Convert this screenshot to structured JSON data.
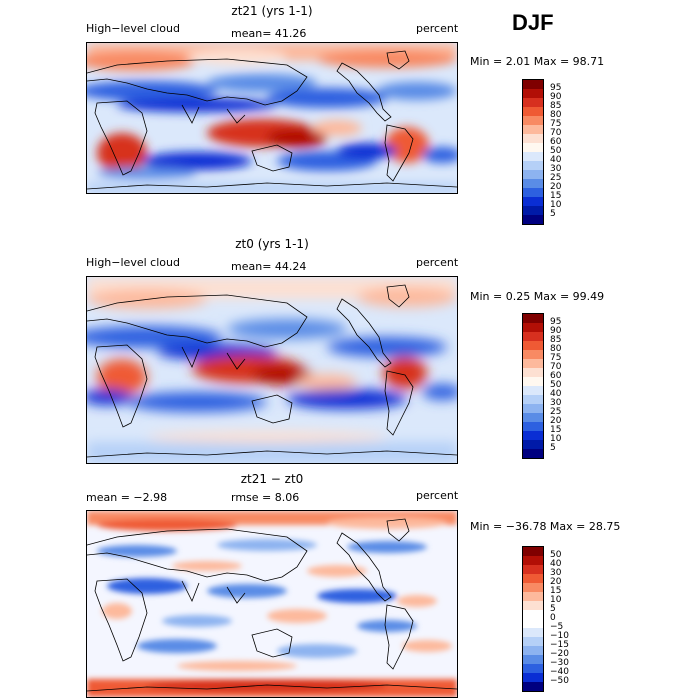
{
  "season": "DJF",
  "panels": [
    {
      "title": "zt21 (yrs 1-1)",
      "left_label": "High−level cloud",
      "center_label": "mean=  41.26",
      "right_label": "percent",
      "stats": "Min =    2.01  Max =   98.71",
      "colorbar_labels": [
        "95",
        "90",
        "85",
        "80",
        "75",
        "70",
        "60",
        "50",
        "40",
        "30",
        "25",
        "20",
        "15",
        "10",
        "5"
      ]
    },
    {
      "title": "zt0 (yrs 1-1)",
      "left_label": "High−level cloud",
      "center_label": "mean=  44.24",
      "right_label": "percent",
      "stats": "Min =    0.25  Max =   99.49",
      "colorbar_labels": [
        "95",
        "90",
        "85",
        "80",
        "75",
        "70",
        "60",
        "50",
        "40",
        "30",
        "25",
        "20",
        "15",
        "10",
        "5"
      ]
    },
    {
      "title": "zt21 − zt0",
      "left_label": "mean =   −2.98",
      "center_label": "rmse =    8.06",
      "right_label": "percent",
      "stats": "Min = −36.78  Max =   28.75",
      "colorbar_labels": [
        "50",
        "40",
        "30",
        "20",
        "15",
        "10",
        "5",
        "0",
        "−5",
        "−10",
        "−15",
        "−20",
        "−30",
        "−40",
        "−50"
      ]
    }
  ],
  "colors": {
    "abs_scale": [
      "#7f0000",
      "#b20f06",
      "#d7301f",
      "#ef5a34",
      "#f88a63",
      "#fdb99c",
      "#fde0d2",
      "#fff8f0",
      "#dbe8fb",
      "#b5d0f7",
      "#8db3f0",
      "#5a8ce6",
      "#2d60e0",
      "#0a2ed4",
      "#001aa8",
      "#000080"
    ],
    "diff_scale": [
      "#7f0000",
      "#b20f06",
      "#d7301f",
      "#ef5a34",
      "#f88a63",
      "#fdb99c",
      "#fde0d2",
      "#ffffff",
      "#ffffff",
      "#dbe8fb",
      "#b5d0f7",
      "#8db3f0",
      "#5a8ce6",
      "#2d60e0",
      "#0a2ed4",
      "#000080"
    ]
  }
}
